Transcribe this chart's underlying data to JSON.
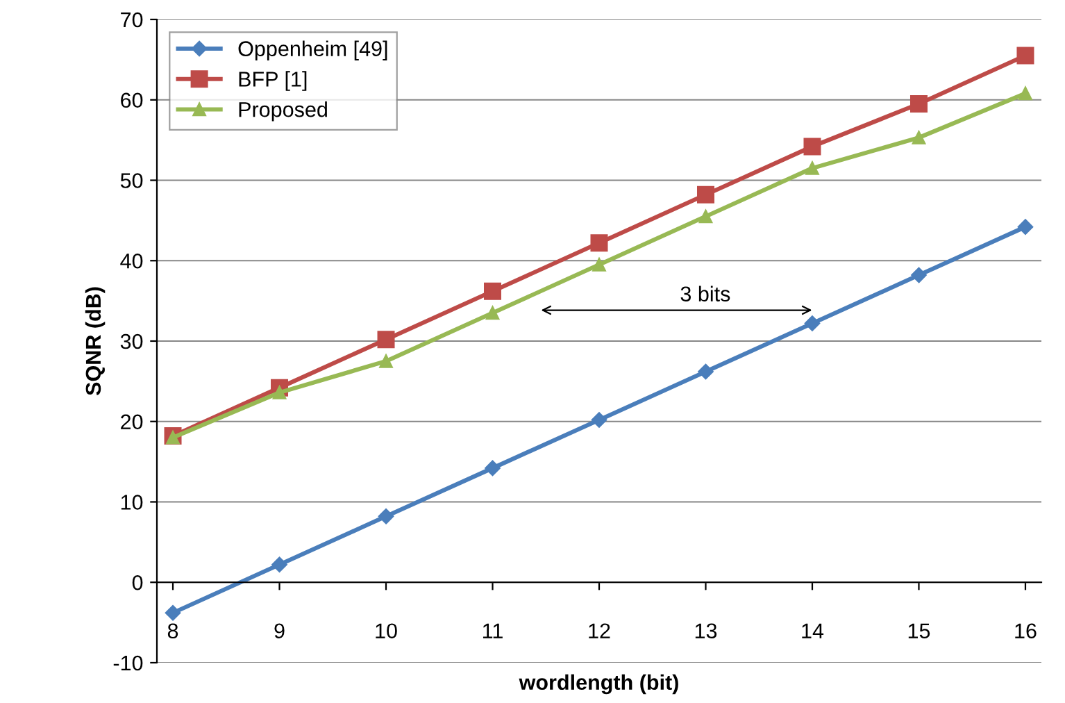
{
  "chart_data": {
    "type": "line",
    "xlabel": "wordlength (bit)",
    "ylabel": "SQNR (dB)",
    "categories": [
      "8",
      "9",
      "10",
      "11",
      "12",
      "13",
      "14",
      "15",
      "16"
    ],
    "series": [
      {
        "name": "Oppenheim [49]",
        "color": "#4a7ebb",
        "marker": "diamond",
        "values": [
          -3.8,
          2.2,
          8.2,
          14.2,
          20.2,
          26.2,
          32.2,
          38.2,
          44.2
        ]
      },
      {
        "name": "BFP [1]",
        "color": "#be4b48",
        "marker": "square",
        "values": [
          18.2,
          24.2,
          30.2,
          36.2,
          42.2,
          48.2,
          54.2,
          59.5,
          65.5
        ]
      },
      {
        "name": "Proposed",
        "color": "#98b954",
        "marker": "triangle",
        "values": [
          18,
          23.6,
          27.5,
          33.5,
          39.5,
          45.5,
          51.5,
          55.3,
          60.8
        ]
      }
    ],
    "ylim": [
      -10,
      70
    ],
    "yticks": [
      -10,
      0,
      10,
      20,
      30,
      40,
      50,
      60,
      70
    ],
    "grid": "y",
    "legend": "top left",
    "line_style": "solid",
    "annotations": [
      "3 bits"
    ]
  }
}
